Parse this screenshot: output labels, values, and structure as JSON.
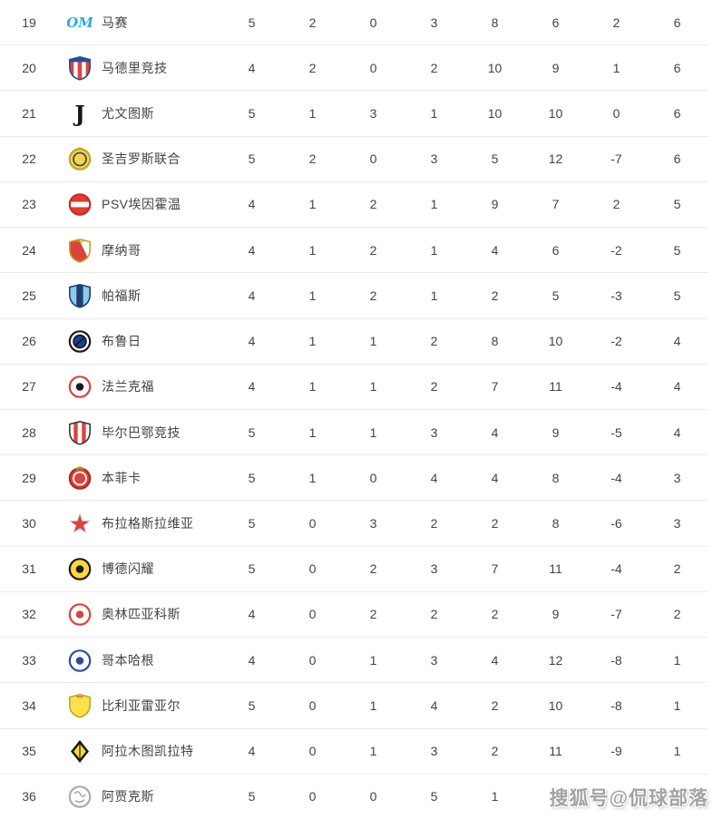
{
  "colors": {
    "background": "#ffffff",
    "row_separator": "#ebebeb",
    "text": "#434343",
    "watermark_text": "#a3a3a3"
  },
  "watermark": {
    "text": "搜狐号@侃球部落"
  },
  "table": {
    "columns": [
      "played",
      "wins",
      "draws",
      "losses",
      "goals-for",
      "goals-against",
      "goal-diff",
      "points"
    ],
    "rows": [
      {
        "rank": "19",
        "team": "马赛",
        "icon": "marseille-crest",
        "logo": {
          "kind": "text",
          "text": "OM",
          "color": "#2fa8e1",
          "size": 15,
          "y": 19,
          "italic": true
        },
        "stats": [
          "5",
          "2",
          "0",
          "3",
          "8",
          "6",
          "2",
          "6"
        ]
      },
      {
        "rank": "20",
        "team": "马德里竞技",
        "icon": "atletico-madrid-crest",
        "logo": {
          "kind": "shield",
          "stripes": [
            "#d8453e",
            "#ffffff",
            "#d8453e",
            "#ffffff",
            "#d8453e"
          ],
          "chief": "#2a4d9b",
          "border": "#2a4d9b"
        },
        "stats": [
          "4",
          "2",
          "0",
          "2",
          "10",
          "9",
          "1",
          "6"
        ]
      },
      {
        "rank": "21",
        "team": "尤文图斯",
        "icon": "juventus-crest",
        "logo": {
          "kind": "text",
          "text": "J",
          "color": "#151515",
          "size": 24,
          "y": 23
        },
        "stats": [
          "5",
          "1",
          "3",
          "1",
          "10",
          "10",
          "0",
          "6"
        ]
      },
      {
        "rank": "22",
        "team": "圣吉罗斯联合",
        "icon": "union-sg-crest",
        "logo": {
          "kind": "circle",
          "bg": "#ffd63c",
          "ring": "#caa21a",
          "inner": "#2a4d9b",
          "topMark": "#caa21a"
        },
        "stats": [
          "5",
          "2",
          "0",
          "3",
          "5",
          "12",
          "-7",
          "6"
        ]
      },
      {
        "rank": "23",
        "team": "PSV埃因霍温",
        "icon": "psv-eindhoven-crest",
        "logo": {
          "kind": "circle",
          "bg": "#e23c32",
          "ring": "#c22d24",
          "band": "#ffffff"
        },
        "stats": [
          "4",
          "1",
          "2",
          "1",
          "9",
          "7",
          "2",
          "5"
        ]
      },
      {
        "rank": "24",
        "team": "摩纳哥",
        "icon": "monaco-crest",
        "logo": {
          "kind": "shield",
          "base": "#ffffff",
          "diag": "#d8453e",
          "border": "#caa21a",
          "crown": "#caa21a"
        },
        "stats": [
          "4",
          "1",
          "2",
          "1",
          "4",
          "6",
          "-2",
          "5"
        ]
      },
      {
        "rank": "25",
        "team": "帕福斯",
        "icon": "pafos-crest",
        "logo": {
          "kind": "shield",
          "stripes": [
            "#8ecbe8",
            "#1f3f74",
            "#8ecbe8"
          ],
          "border": "#1f3f74"
        },
        "stats": [
          "4",
          "1",
          "2",
          "1",
          "2",
          "5",
          "-3",
          "5"
        ]
      },
      {
        "rank": "26",
        "team": "布鲁日",
        "icon": "club-brugge-crest",
        "logo": {
          "kind": "circle",
          "bg": "#ffffff",
          "ring": "#1a1a1a",
          "innerFill": "#1d3f94",
          "innerStroke": "#111111"
        },
        "stats": [
          "4",
          "1",
          "1",
          "2",
          "8",
          "10",
          "-2",
          "4"
        ]
      },
      {
        "rank": "27",
        "team": "法兰克福",
        "icon": "frankfurt-crest",
        "logo": {
          "kind": "circle",
          "bg": "#ffffff",
          "ring": "#d8453e",
          "core": "#1a1a1a"
        },
        "stats": [
          "4",
          "1",
          "1",
          "2",
          "7",
          "11",
          "-4",
          "4"
        ]
      },
      {
        "rank": "28",
        "team": "毕尔巴鄂竞技",
        "icon": "athletic-bilbao-crest",
        "logo": {
          "kind": "shield",
          "stripes": [
            "#ffffff",
            "#d8453e",
            "#ffffff",
            "#d8453e",
            "#ffffff"
          ],
          "border": "#3a3a3a"
        },
        "stats": [
          "5",
          "1",
          "1",
          "3",
          "4",
          "9",
          "-5",
          "4"
        ]
      },
      {
        "rank": "29",
        "team": "本菲卡",
        "icon": "benfica-crest",
        "logo": {
          "kind": "circle",
          "bg": "#d8453e",
          "ring": "#a82c24",
          "inner": "#ffffff",
          "topMark": "#b08a2e"
        },
        "stats": [
          "5",
          "1",
          "0",
          "4",
          "4",
          "8",
          "-4",
          "3"
        ]
      },
      {
        "rank": "30",
        "team": "布拉格斯拉维亚",
        "icon": "slavia-prague-crest",
        "logo": {
          "kind": "star",
          "color": "#d8453e",
          "outline": "#dddddd"
        },
        "stats": [
          "5",
          "0",
          "3",
          "2",
          "2",
          "8",
          "-6",
          "3"
        ]
      },
      {
        "rank": "31",
        "team": "博德闪耀",
        "icon": "bodo-glimt-crest",
        "logo": {
          "kind": "circle",
          "bg": "#ffd63c",
          "ring": "#1a1a1a",
          "core": "#1a1a1a"
        },
        "stats": [
          "5",
          "0",
          "2",
          "3",
          "7",
          "11",
          "-4",
          "2"
        ]
      },
      {
        "rank": "32",
        "team": "奥林匹亚科斯",
        "icon": "olympiacos-crest",
        "logo": {
          "kind": "circle",
          "bg": "#ffffff",
          "ring": "#d8453e",
          "core": "#d8453e"
        },
        "stats": [
          "4",
          "0",
          "2",
          "2",
          "2",
          "9",
          "-7",
          "2"
        ]
      },
      {
        "rank": "33",
        "team": "哥本哈根",
        "icon": "copenhagen-crest",
        "logo": {
          "kind": "circle",
          "bg": "#ffffff",
          "ring": "#2e4f9e",
          "core": "#2e4f9e"
        },
        "stats": [
          "4",
          "0",
          "1",
          "3",
          "4",
          "12",
          "-8",
          "1"
        ]
      },
      {
        "rank": "34",
        "team": "比利亚雷亚尔",
        "icon": "villarreal-crest",
        "logo": {
          "kind": "shield",
          "stripes": [
            "#ffe14d"
          ],
          "border": "#caa21a",
          "crown": "#d8453e"
        },
        "stats": [
          "5",
          "0",
          "1",
          "4",
          "2",
          "10",
          "-8",
          "1"
        ]
      },
      {
        "rank": "35",
        "team": "阿拉木图凯拉特",
        "icon": "kairat-almaty-crest",
        "logo": {
          "kind": "diamond",
          "bg": "#1a1a1a",
          "inner": "#ffd63c"
        },
        "stats": [
          "4",
          "0",
          "1",
          "3",
          "2",
          "11",
          "-9",
          "1"
        ]
      },
      {
        "rank": "36",
        "team": "阿贾克斯",
        "icon": "ajax-crest",
        "logo": {
          "kind": "circle",
          "bg": "#ffffff",
          "ring": "#ababab",
          "scribble": "#9a9a9a"
        },
        "stats": [
          "5",
          "0",
          "0",
          "5",
          "1",
          "16",
          "",
          ""
        ]
      }
    ]
  }
}
